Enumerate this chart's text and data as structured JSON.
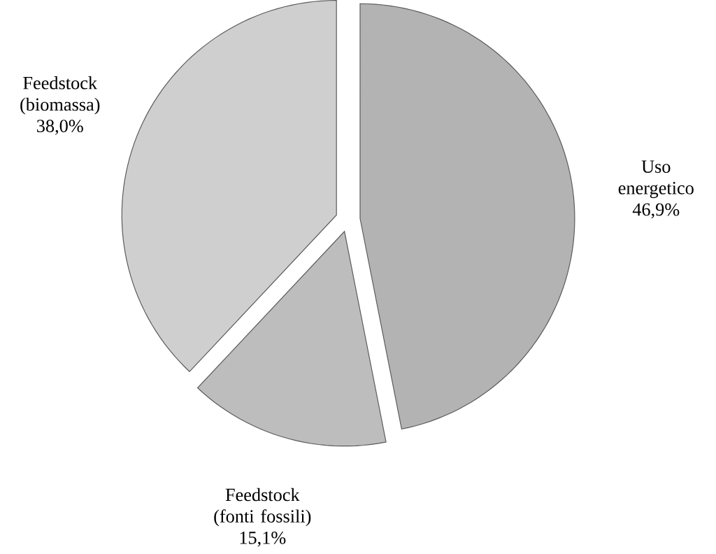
{
  "chart_data": {
    "type": "pie",
    "categories": [
      "Uso energetico",
      "Feedstock (fonti fossili)",
      "Feedstock (biomassa)"
    ],
    "values": [
      46.9,
      15.1,
      38.0
    ],
    "value_labels": [
      "46,9%",
      "15,1%",
      "38,0%"
    ],
    "colors": [
      "#b3b3b3",
      "#bdbdbd",
      "#cfcfcf"
    ]
  }
}
